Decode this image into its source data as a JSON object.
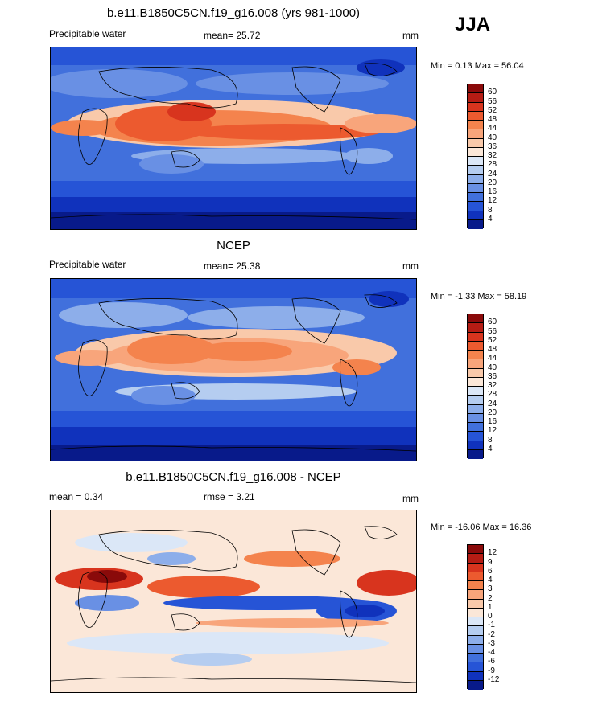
{
  "season": "JJA",
  "panels": [
    {
      "title": "b.e11.B1850C5CN.f19_g16.008 (yrs 981-1000)",
      "left_label": "Precipitable water",
      "center_label": "mean=  25.72",
      "right_label": "mm",
      "minmax": "Min =   0.13 Max =  56.04",
      "ticks": [
        "60",
        "56",
        "52",
        "48",
        "44",
        "40",
        "36",
        "32",
        "28",
        "24",
        "20",
        "16",
        "12",
        "8",
        "4"
      ],
      "colors": [
        "#8a0a0a",
        "#b51c14",
        "#d8341e",
        "#ec5a2f",
        "#f4834d",
        "#f8a57b",
        "#f9c9aa",
        "#fbe7d8",
        "#dbe7f7",
        "#b5cdf0",
        "#8daeea",
        "#6990e4",
        "#4170dc",
        "#2654d6",
        "#1032bc",
        "#081a8a"
      ]
    },
    {
      "title": "NCEP",
      "left_label": "Precipitable water",
      "center_label": "mean=  25.38",
      "right_label": "mm",
      "minmax": "Min =  -1.33 Max =  58.19",
      "ticks": [
        "60",
        "56",
        "52",
        "48",
        "44",
        "40",
        "36",
        "32",
        "28",
        "24",
        "20",
        "16",
        "12",
        "8",
        "4"
      ],
      "colors": [
        "#8a0a0a",
        "#b51c14",
        "#d8341e",
        "#ec5a2f",
        "#f4834d",
        "#f8a57b",
        "#f9c9aa",
        "#fbe7d8",
        "#dbe7f7",
        "#b5cdf0",
        "#8daeea",
        "#6990e4",
        "#4170dc",
        "#2654d6",
        "#1032bc",
        "#081a8a"
      ]
    },
    {
      "title": "b.e11.B1850C5CN.f19_g16.008 - NCEP",
      "left_label": "mean =   0.34",
      "center_label": "rmse =   3.21",
      "right_label": "mm",
      "minmax": "Min = -16.06 Max =  16.36",
      "ticks": [
        "12",
        "9",
        "6",
        "4",
        "3",
        "2",
        "1",
        "0",
        "-1",
        "-2",
        "-3",
        "-4",
        "-6",
        "-9",
        "-12"
      ],
      "colors": [
        "#8a0a0a",
        "#b51c14",
        "#d8341e",
        "#ec5a2f",
        "#f4834d",
        "#f8a57b",
        "#f9c9aa",
        "#fbe7d8",
        "#dbe7f7",
        "#b5cdf0",
        "#8daeea",
        "#6990e4",
        "#4170dc",
        "#2654d6",
        "#1032bc",
        "#081a8a"
      ]
    }
  ]
}
